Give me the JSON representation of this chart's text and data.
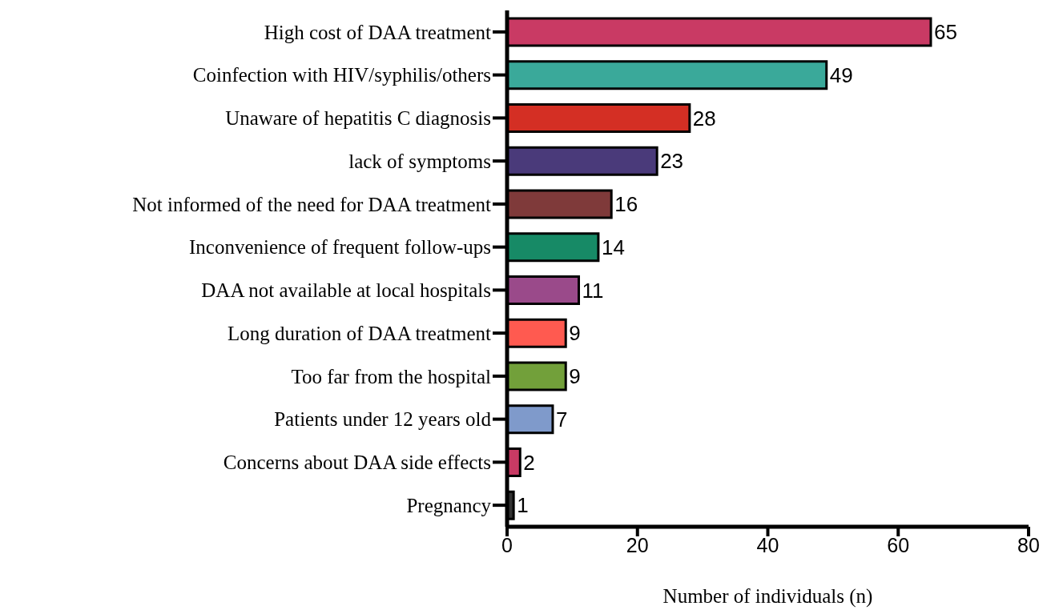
{
  "chart_data": {
    "type": "bar",
    "orientation": "horizontal",
    "xlabel": "Number of individuals (n)",
    "categories": [
      "High cost of DAA treatment",
      "Coinfection with HIV/syphilis/others",
      "Unaware of hepatitis C diagnosis",
      "lack of symptoms",
      "Not informed of the need for DAA treatment",
      "Inconvenience of frequent follow-ups",
      "DAA not available at local hospitals",
      "Long duration of DAA treatment",
      "Too far from the hospital",
      "Patients under 12 years old",
      "Concerns about DAA side effects",
      "Pregnancy"
    ],
    "values": [
      65,
      49,
      28,
      23,
      16,
      14,
      11,
      9,
      9,
      7,
      2,
      1
    ],
    "colors": [
      "#c93a64",
      "#3aa99a",
      "#d42f24",
      "#4a3a7a",
      "#7f3a3a",
      "#178a66",
      "#9a4a8a",
      "#ff5a50",
      "#72a03a",
      "#7f9acb",
      "#c93a64",
      "#333333"
    ],
    "xlim": [
      0,
      80
    ],
    "xticks": [
      0,
      20,
      40,
      60,
      80
    ],
    "data_labels": true
  }
}
